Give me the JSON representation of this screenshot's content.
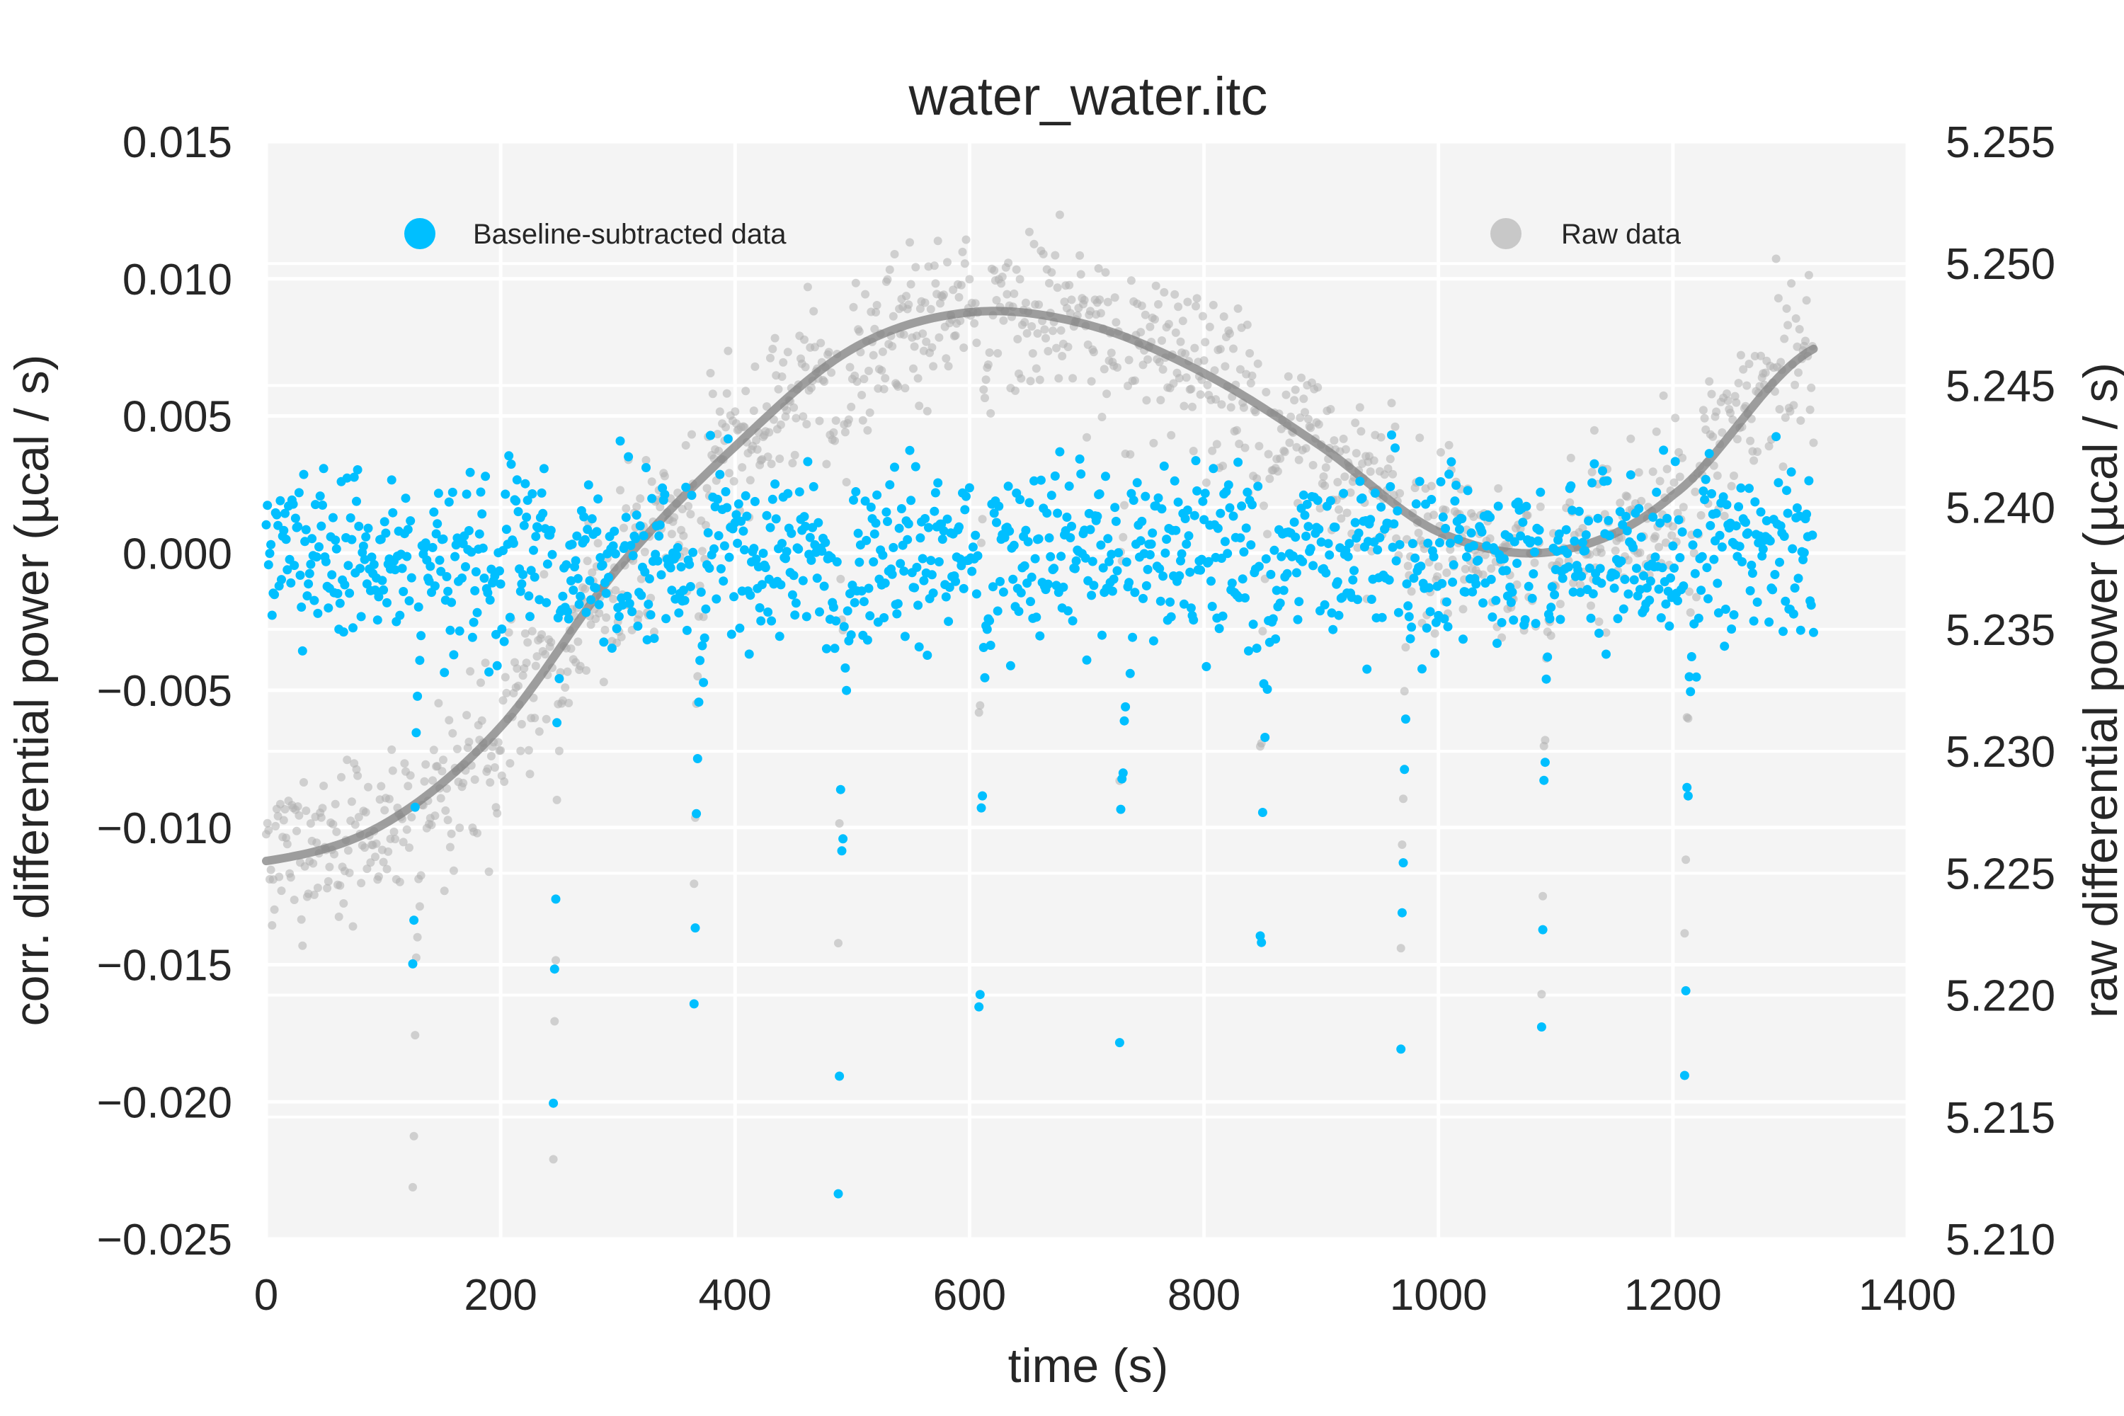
{
  "chart_data": {
    "type": "scatter",
    "title": "water_water.itc",
    "xlabel": "time (s)",
    "ylabel_left": "corr. differential power (µcal / s)",
    "ylabel_right": "raw differential power (µcal / s)",
    "xlim": [
      0,
      1400
    ],
    "ylim_left": [
      -0.025,
      0.015
    ],
    "ylim_right": [
      5.21,
      5.255
    ],
    "x_ticks": [
      "0",
      "200",
      "400",
      "600",
      "800",
      "1000",
      "1200",
      "1400"
    ],
    "y_ticks_left": [
      "0.015",
      "0.010",
      "0.005",
      "0.000",
      "−0.005",
      "−0.010",
      "−0.015",
      "−0.020",
      "−0.025"
    ],
    "y_ticks_right": [
      "5.255",
      "5.250",
      "5.245",
      "5.240",
      "5.235",
      "5.230",
      "5.225",
      "5.220",
      "5.215",
      "5.210"
    ],
    "grid": true,
    "legend": {
      "placement": "top",
      "entries": [
        "Baseline-subtracted data",
        "Raw data"
      ]
    },
    "colors": {
      "corrected": "#00bfff",
      "raw": "#b0b0b0",
      "baseline": "#808080",
      "plot_bg": "#f4f4f4",
      "grid": "#ffffff"
    },
    "sampling_interval_s": 1,
    "injection_times_s": [
      125,
      245,
      365,
      488,
      608,
      728,
      848,
      968,
      1088,
      1210
    ],
    "injection_peak_corr": [
      -0.0145,
      -0.019,
      -0.018,
      -0.022,
      -0.019,
      -0.0155,
      -0.016,
      -0.018,
      -0.0175,
      -0.0185
    ],
    "baseline_raw": {
      "x": [
        0,
        100,
        200,
        300,
        400,
        500,
        600,
        700,
        800,
        900,
        1000,
        1100,
        1200,
        1320
      ],
      "y": [
        5.2255,
        5.227,
        5.231,
        5.2375,
        5.2425,
        5.2465,
        5.248,
        5.2475,
        5.2455,
        5.2425,
        5.239,
        5.2382,
        5.2405,
        5.2465
      ]
    }
  }
}
